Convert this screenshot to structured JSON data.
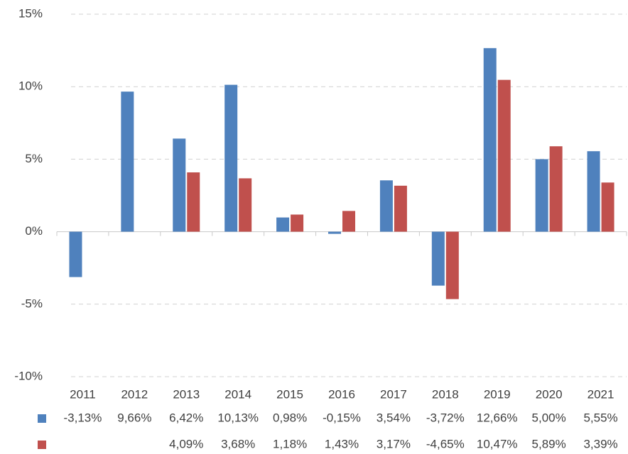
{
  "chart_data": {
    "type": "bar",
    "categories": [
      "2011",
      "2012",
      "2013",
      "2014",
      "2015",
      "2016",
      "2017",
      "2018",
      "2019",
      "2020",
      "2021"
    ],
    "series": [
      {
        "color": "#4f81bd",
        "values": [
          -3.13,
          9.66,
          6.42,
          10.13,
          0.98,
          -0.15,
          3.54,
          -3.72,
          12.66,
          5.0,
          5.55
        ],
        "value_labels": [
          "-3,13%",
          "9,66%",
          "6,42%",
          "10,13%",
          "0,98%",
          "-0,15%",
          "3,54%",
          "-3,72%",
          "12,66%",
          "5,00%",
          "5,55%"
        ]
      },
      {
        "color": "#c0504d",
        "values": [
          null,
          null,
          4.09,
          3.68,
          1.18,
          1.43,
          3.17,
          -4.65,
          10.47,
          5.89,
          3.39
        ],
        "value_labels": [
          null,
          null,
          "4,09%",
          "3,68%",
          "1,18%",
          "1,43%",
          "3,17%",
          "-4,65%",
          "10,47%",
          "5,89%",
          "3,39%"
        ]
      }
    ],
    "ylim": [
      -10,
      15
    ],
    "yticks": [
      {
        "value": -10,
        "label": "-10%"
      },
      {
        "value": -5,
        "label": "-5%"
      },
      {
        "value": 0,
        "label": "0%"
      },
      {
        "value": 5,
        "label": "5%"
      },
      {
        "value": 10,
        "label": "10%"
      },
      {
        "value": 15,
        "label": "15%"
      }
    ],
    "grid": true
  }
}
